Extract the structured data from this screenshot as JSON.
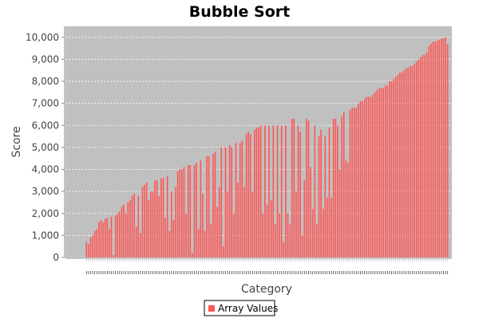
{
  "chart_data": {
    "type": "bar",
    "title": "Bubble Sort",
    "xlabel": "Category",
    "ylabel": "Score",
    "ylim": [
      0,
      10500
    ],
    "yticks": [
      0,
      1000,
      2000,
      3000,
      4000,
      5000,
      6000,
      7000,
      8000,
      9000,
      10000
    ],
    "ytick_labels": [
      "0",
      "1,000",
      "2,000",
      "3,000",
      "4,000",
      "5,000",
      "6,000",
      "7,000",
      "8,000",
      "9,000",
      "10,000"
    ],
    "grid": true,
    "legend": "bottom-center",
    "colors": {
      "bar": "#ff5555",
      "plot_background": "#c0c0c0",
      "gridline": "#ffffff"
    },
    "series": [
      {
        "name": "Array Values",
        "values": [
          700,
          600,
          900,
          1000,
          1200,
          1300,
          1600,
          1700,
          1600,
          1750,
          1800,
          1300,
          1850,
          100,
          1900,
          2000,
          2100,
          2300,
          2400,
          2000,
          2500,
          2600,
          2800,
          2900,
          1400,
          2800,
          1100,
          3200,
          3300,
          3400,
          2600,
          3000,
          3000,
          3500,
          3500,
          2800,
          3600,
          3600,
          1800,
          3700,
          1200,
          3000,
          1700,
          3200,
          3900,
          4000,
          4000,
          4100,
          2000,
          4200,
          4200,
          200,
          4200,
          4300,
          1300,
          4400,
          2900,
          1200,
          4600,
          4600,
          1500,
          4700,
          4800,
          2300,
          3200,
          5000,
          500,
          5000,
          3000,
          5100,
          5000,
          2000,
          5200,
          3400,
          5200,
          5300,
          3200,
          5600,
          5700,
          5600,
          3000,
          5800,
          5900,
          5900,
          6000,
          2000,
          6000,
          2400,
          6000,
          2600,
          6000,
          1500,
          6000,
          2000,
          6000,
          700,
          6000,
          2000,
          1500,
          6300,
          6300,
          3000,
          6000,
          5700,
          1000,
          3500,
          6300,
          6200,
          4100,
          2200,
          6000,
          1500,
          5500,
          5800,
          2200,
          5500,
          2700,
          5900,
          2700,
          6300,
          6300,
          6000,
          4000,
          6400,
          6600,
          4400,
          4300,
          6700,
          6800,
          6800,
          6800,
          7000,
          7100,
          7100,
          7200,
          7300,
          7300,
          7300,
          7400,
          7500,
          7600,
          7700,
          7700,
          7700,
          7800,
          7800,
          8000,
          8000,
          8100,
          8200,
          8300,
          8400,
          8400,
          8500,
          8600,
          8600,
          8700,
          8700,
          8800,
          8900,
          9000,
          9100,
          9200,
          9200,
          9300,
          9600,
          9700,
          9800,
          9800,
          9850,
          9900,
          9950,
          9950,
          10000,
          9700
        ]
      }
    ]
  }
}
